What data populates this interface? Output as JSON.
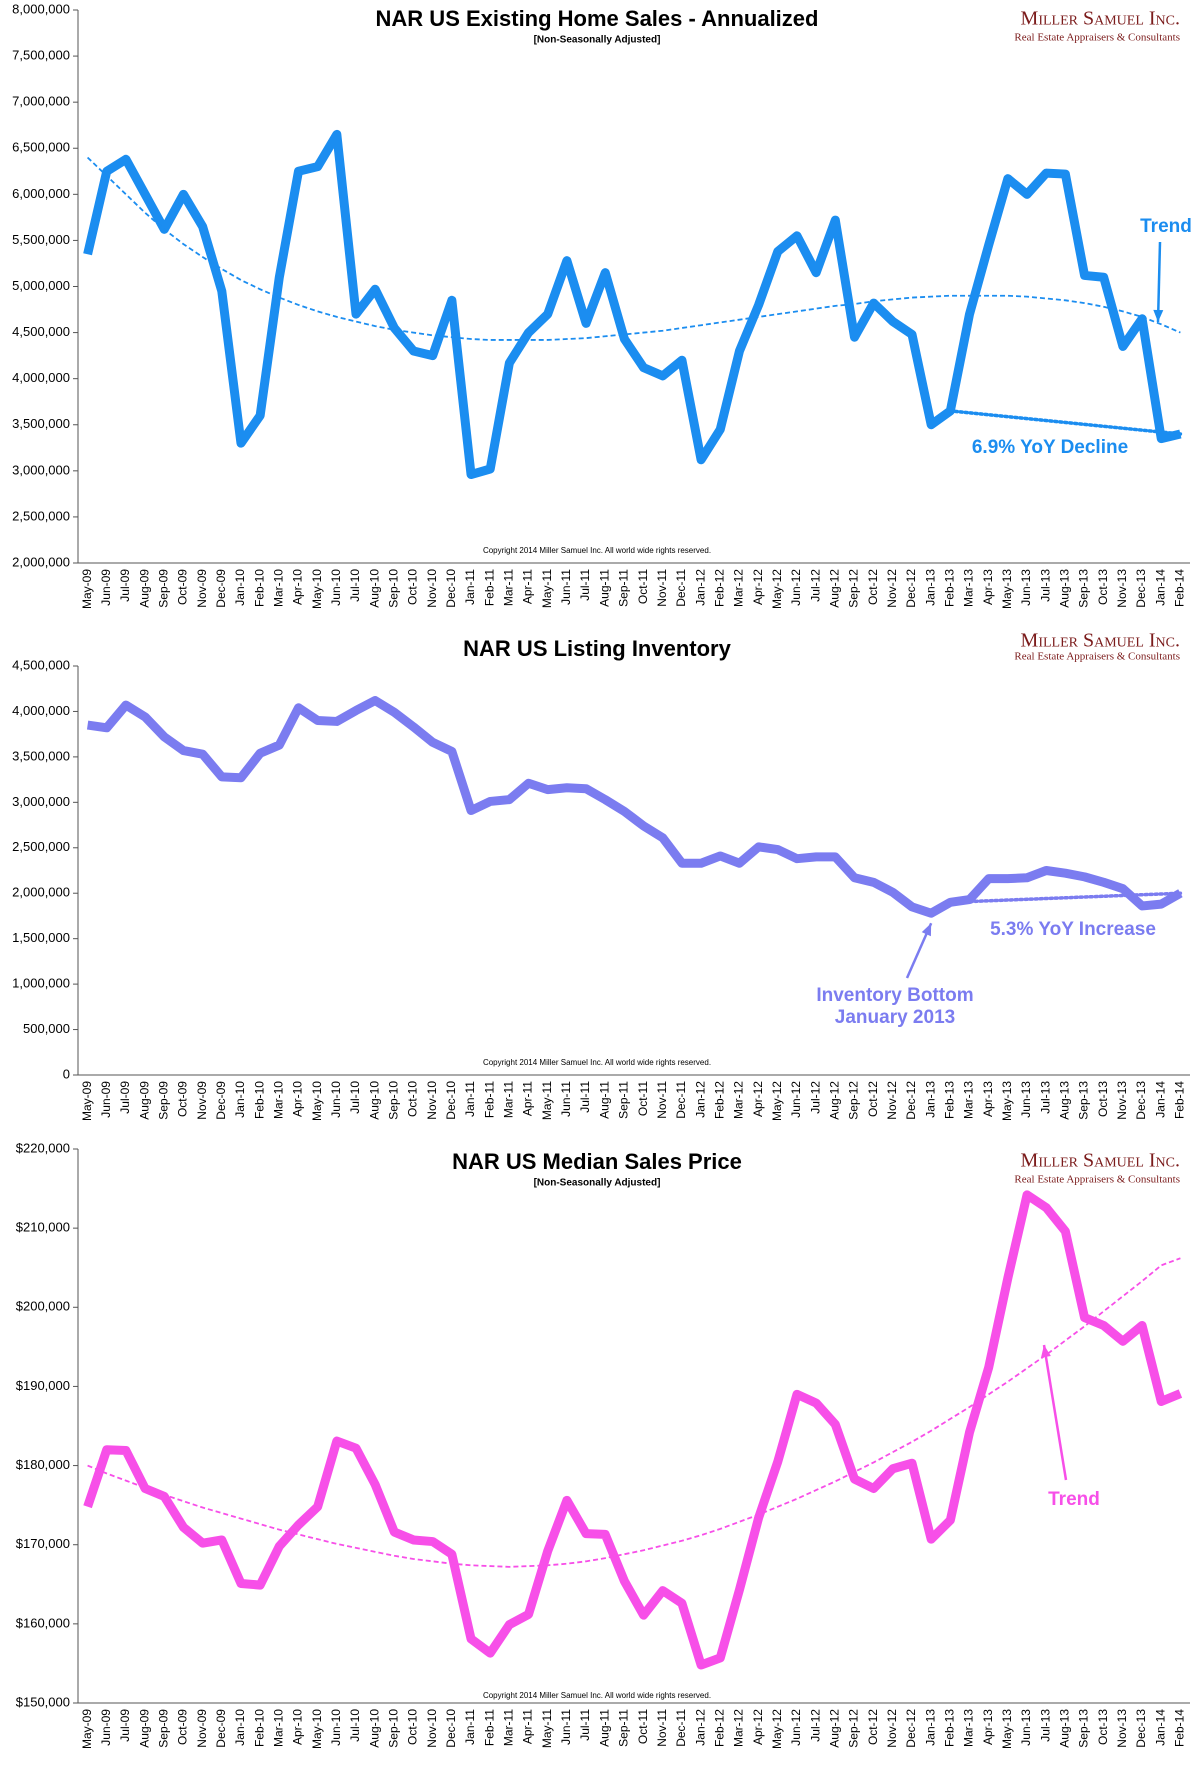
{
  "branding": {
    "name": "Miller Samuel Inc.",
    "tagline": "Real Estate Appraisers & Consultants",
    "copyright": "Copyright 2014 Miller Samuel Inc.  All world wide rights reserved."
  },
  "chart_data": [
    {
      "type": "line",
      "title": "NAR US Existing Home Sales - Annualized",
      "subtitle": "[Non-Seasonally Adjusted]",
      "categories": [
        "May-09",
        "Jun-09",
        "Jul-09",
        "Aug-09",
        "Sep-09",
        "Oct-09",
        "Nov-09",
        "Dec-09",
        "Jan-10",
        "Feb-10",
        "Mar-10",
        "Apr-10",
        "May-10",
        "Jun-10",
        "Jul-10",
        "Aug-10",
        "Sep-10",
        "Oct-10",
        "Nov-10",
        "Dec-10",
        "Jan-11",
        "Feb-11",
        "Mar-11",
        "Apr-11",
        "May-11",
        "Jun-11",
        "Jul-11",
        "Aug-11",
        "Sep-11",
        "Oct-11",
        "Nov-11",
        "Dec-11",
        "Jan-12",
        "Feb-12",
        "Mar-12",
        "Apr-12",
        "May-12",
        "Jun-12",
        "Jul-12",
        "Aug-12",
        "Sep-12",
        "Oct-12",
        "Nov-12",
        "Dec-12",
        "Jan-13",
        "Feb-13",
        "Mar-13",
        "Apr-13",
        "May-13",
        "Jun-13",
        "Jul-13",
        "Aug-13",
        "Sep-13",
        "Oct-13",
        "Nov-13",
        "Dec-13",
        "Jan-14",
        "Feb-14"
      ],
      "series": [
        {
          "color": "#1b8df0",
          "values": [
            5350000,
            6250000,
            6380000,
            6000000,
            5620000,
            6000000,
            5650000,
            4950000,
            3300000,
            3600000,
            5100000,
            6250000,
            6300000,
            6650000,
            4700000,
            4970000,
            4550000,
            4300000,
            4250000,
            4850000,
            2960000,
            3020000,
            4170000,
            4500000,
            4700000,
            5280000,
            4600000,
            5150000,
            4430000,
            4120000,
            4030000,
            4200000,
            3120000,
            3450000,
            4300000,
            4800000,
            5380000,
            5550000,
            5150000,
            5720000,
            4450000,
            4820000,
            4620000,
            4480000,
            3500000,
            3650000,
            4700000,
            5450000,
            6170000,
            6000000,
            6230000,
            6220000,
            5120000,
            5100000,
            4350000,
            4650000,
            3350000,
            3400000
          ]
        },
        {
          "name": "Trend",
          "color": "#1b8df0",
          "style": "dashed",
          "values": [
            6400000,
            6200000,
            6000000,
            5800000,
            5620000,
            5460000,
            5320000,
            5190000,
            5070000,
            4970000,
            4880000,
            4800000,
            4730000,
            4670000,
            4620000,
            4570000,
            4530000,
            4500000,
            4470000,
            4450000,
            4430000,
            4420000,
            4420000,
            4420000,
            4420000,
            4430000,
            4440000,
            4460000,
            4480000,
            4500000,
            4520000,
            4550000,
            4580000,
            4610000,
            4640000,
            4670000,
            4700000,
            4730000,
            4760000,
            4790000,
            4810000,
            4840000,
            4860000,
            4880000,
            4890000,
            4900000,
            4900000,
            4900000,
            4900000,
            4890000,
            4870000,
            4850000,
            4820000,
            4780000,
            4730000,
            4670000,
            4590000,
            4500000
          ]
        }
      ],
      "yoy": {
        "label": "6.9% YoY Decline",
        "x": [
          "Feb-13",
          "Feb-14"
        ],
        "values": [
          3650000,
          3400000
        ]
      },
      "ylim": [
        2000000,
        8000000
      ],
      "yticks": [
        {
          "value": 2000000,
          "label": "2,000,000"
        },
        {
          "value": 2500000,
          "label": "2,500,000"
        },
        {
          "value": 3000000,
          "label": "3,000,000"
        },
        {
          "value": 3500000,
          "label": "3,500,000"
        },
        {
          "value": 4000000,
          "label": "4,000,000"
        },
        {
          "value": 4500000,
          "label": "4,500,000"
        },
        {
          "value": 5000000,
          "label": "5,000,000"
        },
        {
          "value": 5500000,
          "label": "5,500,000"
        },
        {
          "value": 6000000,
          "label": "6,000,000"
        },
        {
          "value": 6500000,
          "label": "6,500,000"
        },
        {
          "value": 7000000,
          "label": "7,000,000"
        },
        {
          "value": 7500000,
          "label": "7,500,000"
        },
        {
          "value": 8000000,
          "label": "8,000,000"
        }
      ],
      "grid": false
    },
    {
      "type": "line",
      "title": "NAR US Listing Inventory",
      "categories": [
        "May-09",
        "Jun-09",
        "Jul-09",
        "Aug-09",
        "Sep-09",
        "Oct-09",
        "Nov-09",
        "Dec-09",
        "Jan-10",
        "Feb-10",
        "Mar-10",
        "Apr-10",
        "May-10",
        "Jun-10",
        "Jul-10",
        "Aug-10",
        "Sep-10",
        "Oct-10",
        "Nov-10",
        "Dec-10",
        "Jan-11",
        "Feb-11",
        "Mar-11",
        "Apr-11",
        "May-11",
        "Jun-11",
        "Jul-11",
        "Aug-11",
        "Sep-11",
        "Oct-11",
        "Nov-11",
        "Dec-11",
        "Jan-12",
        "Feb-12",
        "Mar-12",
        "Apr-12",
        "May-12",
        "Jun-12",
        "Jul-12",
        "Aug-12",
        "Sep-12",
        "Oct-12",
        "Nov-12",
        "Dec-12",
        "Jan-13",
        "Feb-13",
        "Mar-13",
        "Apr-13",
        "May-13",
        "Jun-13",
        "Jul-13",
        "Aug-13",
        "Sep-13",
        "Oct-13",
        "Nov-13",
        "Dec-13",
        "Jan-14",
        "Feb-14"
      ],
      "series": [
        {
          "color": "#7b7cf0",
          "values": [
            3850000,
            3820000,
            4070000,
            3940000,
            3720000,
            3570000,
            3530000,
            3280000,
            3270000,
            3540000,
            3630000,
            4040000,
            3900000,
            3890000,
            4010000,
            4120000,
            3990000,
            3830000,
            3660000,
            3560000,
            2910000,
            3010000,
            3030000,
            3210000,
            3140000,
            3160000,
            3150000,
            3030000,
            2900000,
            2740000,
            2610000,
            2330000,
            2330000,
            2410000,
            2330000,
            2510000,
            2480000,
            2380000,
            2400000,
            2400000,
            2170000,
            2120000,
            2010000,
            1850000,
            1780000,
            1900000,
            1930000,
            2160000,
            2160000,
            2170000,
            2250000,
            2220000,
            2180000,
            2120000,
            2050000,
            1860000,
            1880000,
            2000000
          ]
        }
      ],
      "yoy": {
        "label": "5.3% YoY Increase",
        "x": [
          "Feb-13",
          "Feb-14"
        ],
        "values": [
          1900000,
          2000000
        ]
      },
      "callout": {
        "lines": [
          "Inventory Bottom",
          "January 2013"
        ],
        "at": "Jan-13"
      },
      "ylim": [
        0,
        4500000
      ],
      "yticks": [
        0,
        {
          "value": 500000,
          "label": "500,000"
        },
        {
          "value": 1000000,
          "label": "1,000,000"
        },
        {
          "value": 1500000,
          "label": "1,500,000"
        },
        {
          "value": 2000000,
          "label": "2,000,000"
        },
        {
          "value": 2500000,
          "label": "2,500,000"
        },
        {
          "value": 3000000,
          "label": "3,000,000"
        },
        {
          "value": 3500000,
          "label": "3,500,000"
        },
        {
          "value": 4000000,
          "label": "4,000,000"
        },
        {
          "value": 4500000,
          "label": "4,500,000"
        }
      ],
      "grid": false
    },
    {
      "type": "line",
      "title": "NAR US Median Sales Price",
      "subtitle": "[Non-Seasonally Adjusted]",
      "categories": [
        "May-09",
        "Jun-09",
        "Jul-09",
        "Aug-09",
        "Sep-09",
        "Oct-09",
        "Nov-09",
        "Dec-09",
        "Jan-10",
        "Feb-10",
        "Mar-10",
        "Apr-10",
        "May-10",
        "Jun-10",
        "Jul-10",
        "Aug-10",
        "Sep-10",
        "Oct-10",
        "Nov-10",
        "Dec-10",
        "Jan-11",
        "Feb-11",
        "Mar-11",
        "Apr-11",
        "May-11",
        "Jun-11",
        "Jul-11",
        "Aug-11",
        "Sep-11",
        "Oct-11",
        "Nov-11",
        "Dec-11",
        "Jan-12",
        "Feb-12",
        "Mar-12",
        "Apr-12",
        "May-12",
        "Jun-12",
        "Jul-12",
        "Aug-12",
        "Sep-12",
        "Oct-12",
        "Nov-12",
        "Dec-12",
        "Jan-13",
        "Feb-13",
        "Mar-13",
        "Apr-13",
        "May-13",
        "Jun-13",
        "Jul-13",
        "Aug-13",
        "Sep-13",
        "Oct-13",
        "Nov-13",
        "Dec-13",
        "Jan-14",
        "Feb-14"
      ],
      "series": [
        {
          "color": "#f74fe8",
          "values": [
            174800,
            182000,
            181900,
            177100,
            176100,
            172200,
            170200,
            170600,
            165100,
            164900,
            169800,
            172500,
            174800,
            183100,
            182200,
            177600,
            171600,
            170600,
            170400,
            168800,
            158100,
            156300,
            159900,
            161200,
            169200,
            175600,
            171400,
            171300,
            165400,
            161100,
            164200,
            162600,
            154800,
            155700,
            164300,
            173400,
            180500,
            189000,
            187900,
            185200,
            178300,
            177100,
            179600,
            180300,
            170700,
            173100,
            184200,
            192400,
            203700,
            214200,
            212600,
            209600,
            198700,
            197700,
            195700,
            197700,
            188100,
            189100
          ]
        },
        {
          "name": "Trend",
          "color": "#f74fe8",
          "style": "dashed",
          "values": [
            180000,
            179000,
            178100,
            177200,
            176300,
            175500,
            174700,
            174000,
            173300,
            172600,
            171900,
            171300,
            170700,
            170100,
            169600,
            169100,
            168600,
            168200,
            167900,
            167600,
            167400,
            167300,
            167200,
            167300,
            167400,
            167600,
            167900,
            168300,
            168800,
            169300,
            169900,
            170500,
            171200,
            172000,
            172900,
            173800,
            174800,
            175800,
            176900,
            178000,
            179200,
            180400,
            181700,
            183000,
            184400,
            185900,
            187400,
            189000,
            190600,
            192300,
            194000,
            195800,
            197600,
            199500,
            201400,
            203300,
            205300,
            206200
          ]
        }
      ],
      "ylim": [
        150000,
        220000
      ],
      "yticks": [
        {
          "value": 150000,
          "label": "$150,000"
        },
        {
          "value": 160000,
          "label": "$160,000"
        },
        {
          "value": 170000,
          "label": "$170,000"
        },
        {
          "value": 180000,
          "label": "$180,000"
        },
        {
          "value": 190000,
          "label": "$190,000"
        },
        {
          "value": 200000,
          "label": "$200,000"
        },
        {
          "value": 210000,
          "label": "$210,000"
        },
        {
          "value": 220000,
          "label": "$220,000"
        }
      ],
      "grid": false
    }
  ]
}
